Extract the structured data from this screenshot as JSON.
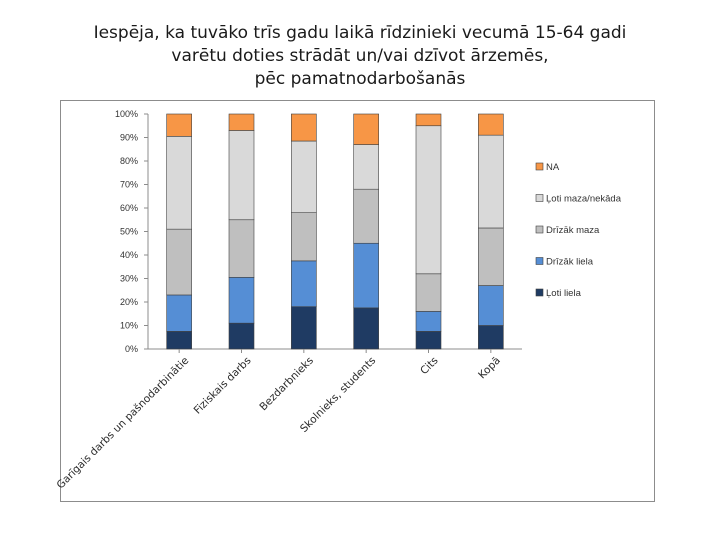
{
  "title_lines": [
    "Iespēja, ka tuvāko trīs gadu laikā rīdzinieki vecumā 15-64 gadi",
    "varētu doties strādāt un/vai dzīvot ārzemēs,",
    "pēc pamatnodarbošanās"
  ],
  "chart_data": {
    "type": "bar",
    "stacked": true,
    "percent": true,
    "title": "Iespēja, ka tuvāko trīs gadu laikā rīdzinieki vecumā 15-64 gadi varētu doties strādāt un/vai dzīvot ārzemēs, pēc pamatnodarbošanās",
    "categories": [
      "Garīgais darbs un pašnodarbinātie",
      "Fiziskais darbs",
      "Bezdarbnieks",
      "Skolnieks, students",
      "Cits",
      "Kopā"
    ],
    "ylim": [
      0,
      100
    ],
    "yticks": [
      "0%",
      "10%",
      "20%",
      "30%",
      "40%",
      "50%",
      "60%",
      "70%",
      "80%",
      "90%",
      "100%"
    ],
    "legend_position": "right",
    "grid": false,
    "series": [
      {
        "name": "Ļoti liela",
        "color": "#1f3b63",
        "values": [
          7.5,
          11,
          18,
          17.5,
          7.5,
          10
        ]
      },
      {
        "name": "Drīzāk liela",
        "color": "#558ed5",
        "values": [
          15.5,
          19.5,
          19.5,
          27.5,
          8.5,
          17
        ]
      },
      {
        "name": "Drīzāk maza",
        "color": "#bfbfbf",
        "values": [
          28,
          24.5,
          20.5,
          23,
          16,
          24.5
        ]
      },
      {
        "name": "Ļoti maza/nekāda",
        "color": "#d9d9d9",
        "values": [
          39.5,
          38,
          30.5,
          19,
          63,
          39.5
        ]
      },
      {
        "name": "NA",
        "color": "#f79646",
        "values": [
          9.5,
          7,
          11.5,
          13,
          5,
          9
        ]
      }
    ]
  }
}
